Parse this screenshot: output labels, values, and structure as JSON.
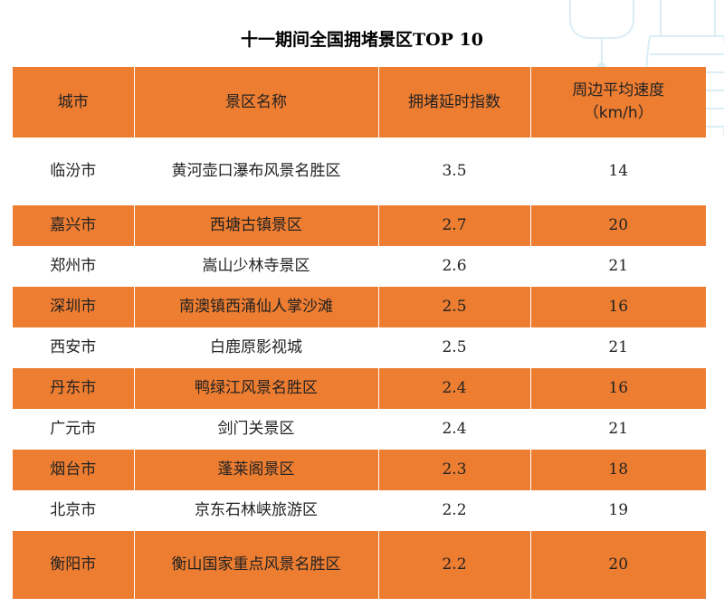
{
  "title": "十一期间全国拥堵景区TOP 10",
  "columns": [
    "城市",
    "景区名称",
    "拥堵延时指数",
    "周边平均速度",
    "（km/h）"
  ],
  "rows": [
    {
      "city": "临汾市",
      "scenic": "黄河壶口瀑布风景名胜区",
      "delay_index": "3.5",
      "speed": "14"
    },
    {
      "city": "嘉兴市",
      "scenic": "西塘古镇景区",
      "delay_index": "2.7",
      "speed": "20"
    },
    {
      "city": "郑州市",
      "scenic": "嵩山少林寺景区",
      "delay_index": "2.6",
      "speed": "21"
    },
    {
      "city": "深圳市",
      "scenic": "南澳镇西涌仙人掌沙滩",
      "delay_index": "2.5",
      "speed": "16"
    },
    {
      "city": "西安市",
      "scenic": "白鹿原影视城",
      "delay_index": "2.5",
      "speed": "21"
    },
    {
      "city": "丹东市",
      "scenic": "鸭绿江风景名胜区",
      "delay_index": "2.4",
      "speed": "16"
    },
    {
      "city": "广元市",
      "scenic": "剑门关景区",
      "delay_index": "2.4",
      "speed": "21"
    },
    {
      "city": "烟台市",
      "scenic": "蓬莱阁景区",
      "delay_index": "2.3",
      "speed": "18"
    },
    {
      "city": "北京市",
      "scenic": "京东石林峡旅游区",
      "delay_index": "2.2",
      "speed": "19"
    },
    {
      "city": "衡阳市",
      "scenic": "衡山国家重点风景名胜区",
      "delay_index": "2.2",
      "speed": "20"
    }
  ],
  "colors": {
    "orange": "#ed7d31",
    "white": "#ffffff",
    "decoration": "#cfe8f3"
  }
}
